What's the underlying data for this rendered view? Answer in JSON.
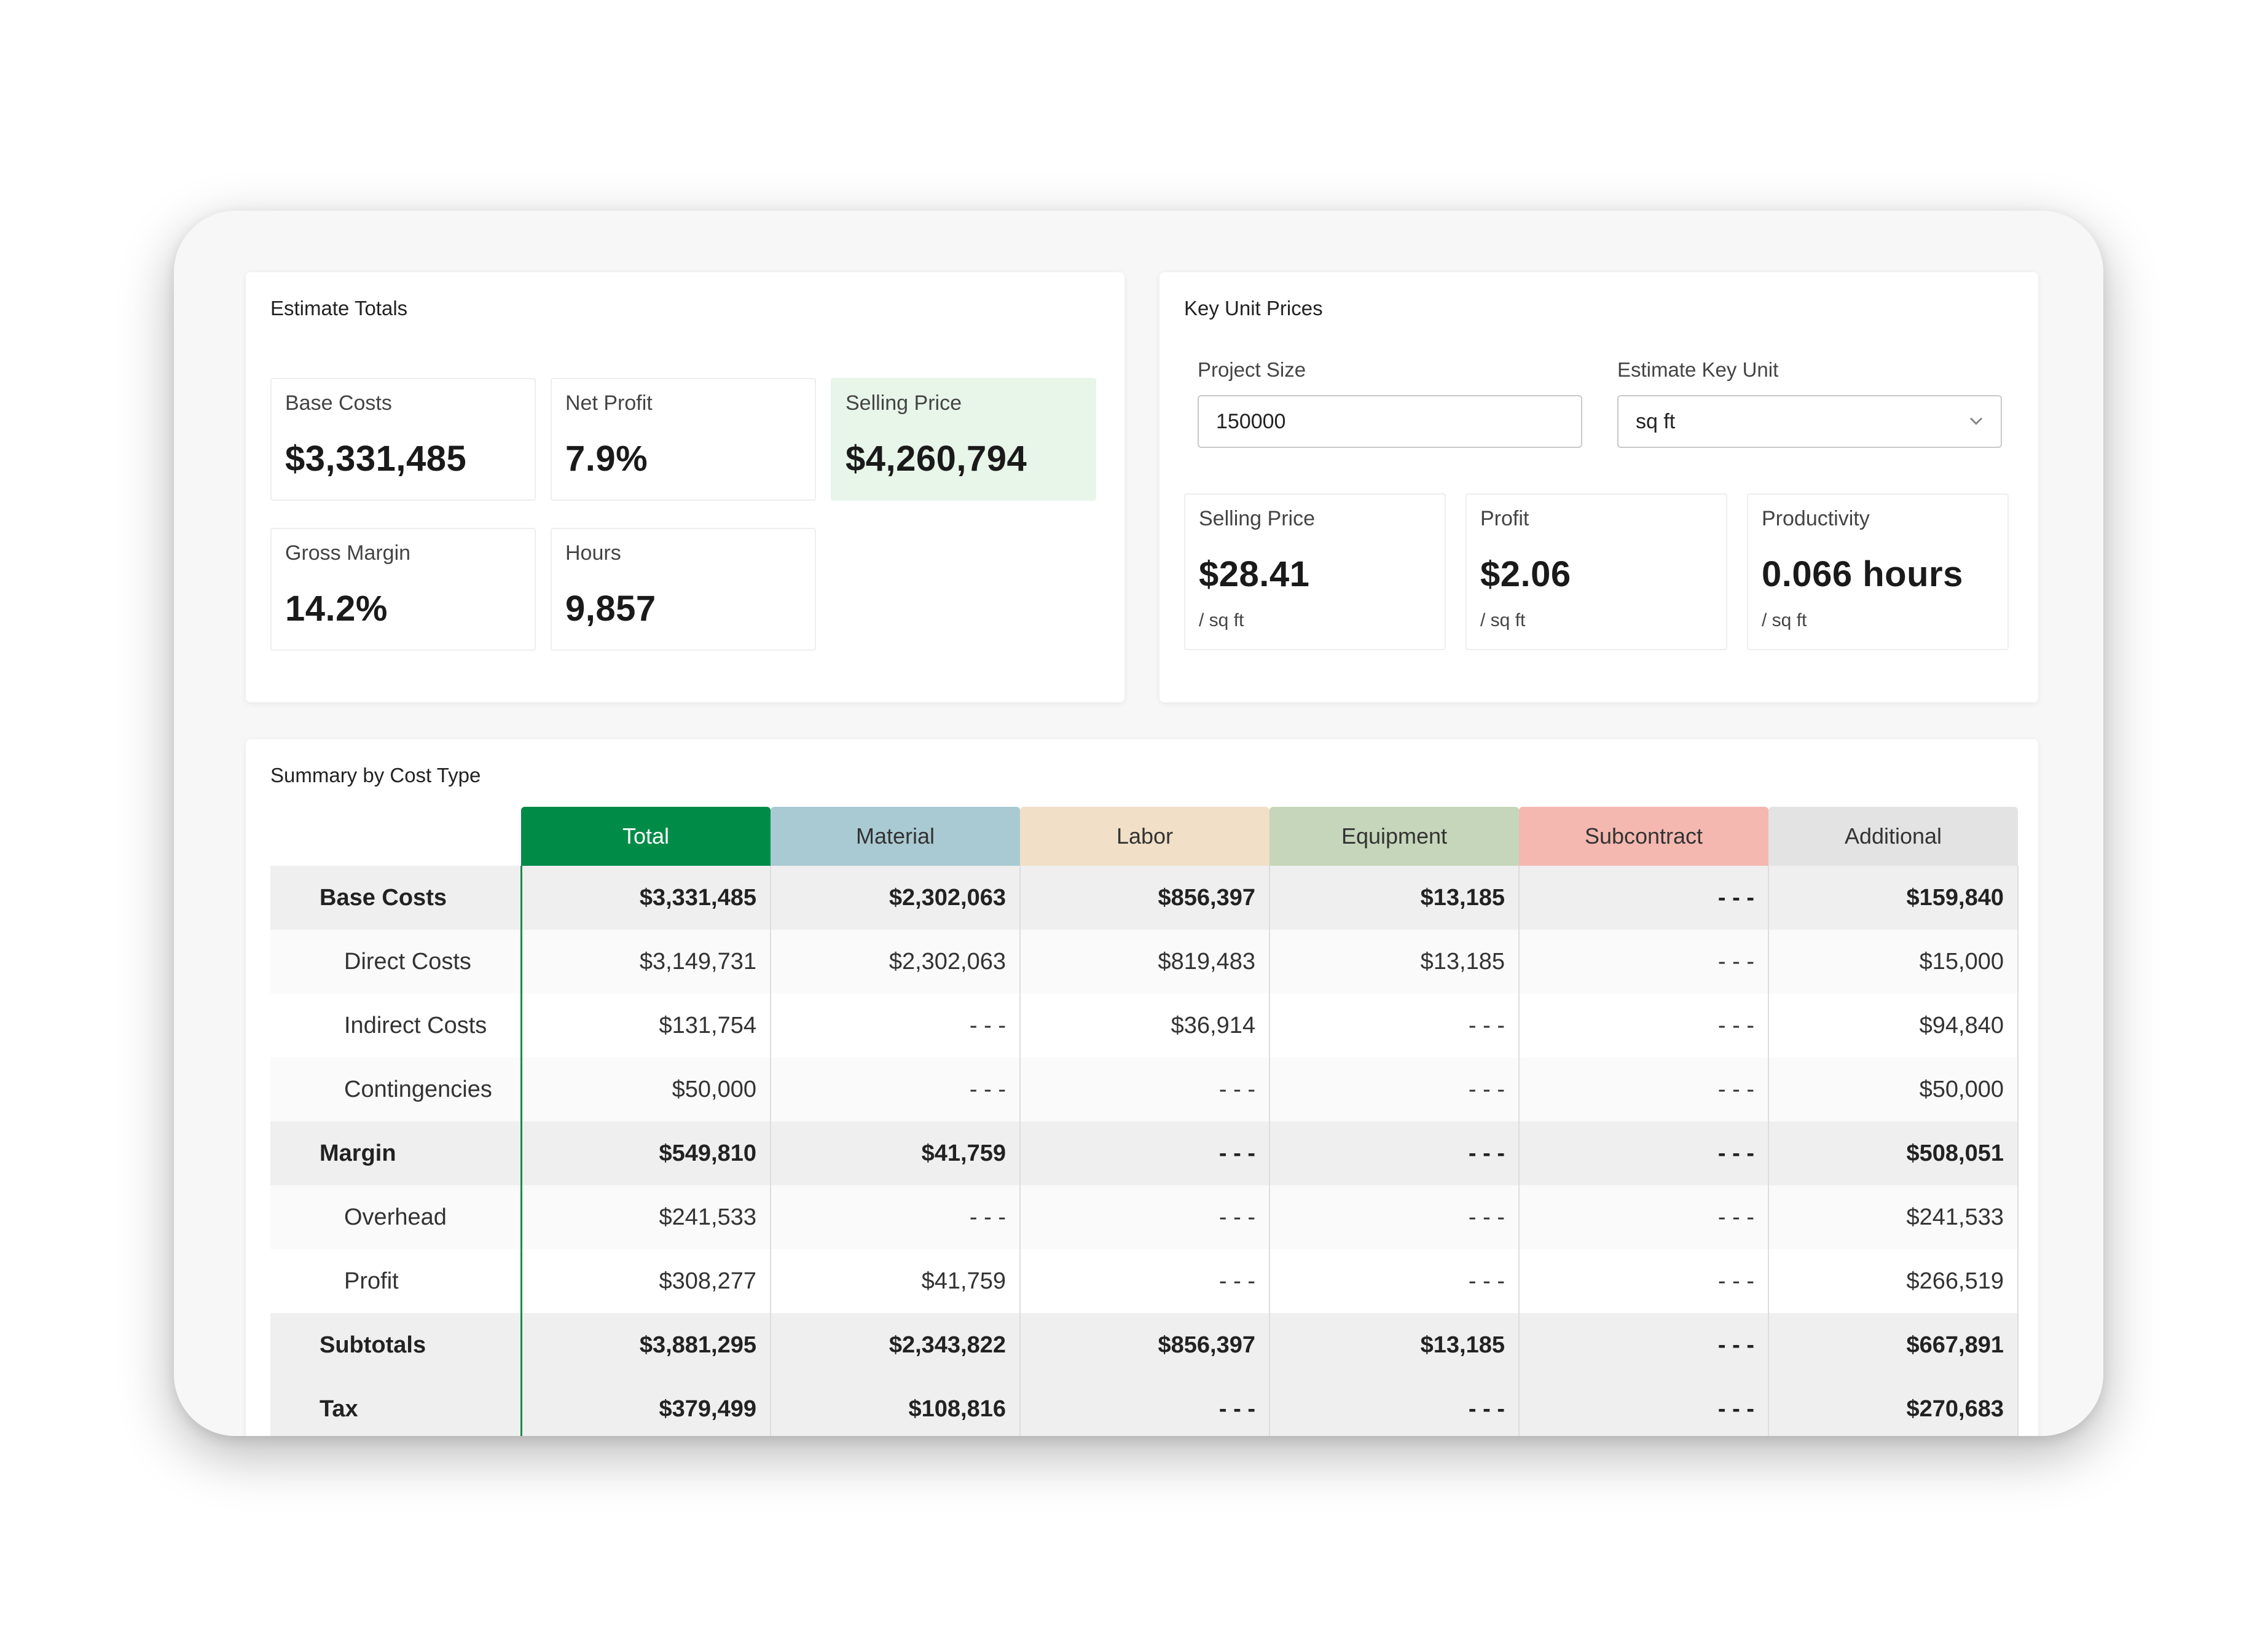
{
  "estimate_totals": {
    "title": "Estimate Totals",
    "cards": [
      {
        "label": "Base Costs",
        "value": "$3,331,485"
      },
      {
        "label": "Net Profit",
        "value": "7.9%"
      },
      {
        "label": "Selling Price",
        "value": "$4,260,794"
      },
      {
        "label": "Gross Margin",
        "value": "14.2%"
      },
      {
        "label": "Hours",
        "value": "9,857"
      }
    ]
  },
  "key_unit_prices": {
    "title": "Key Unit Prices",
    "project_size_label": "Project Size",
    "project_size_value": "150000",
    "key_unit_label": "Estimate Key Unit",
    "key_unit_value": "sq ft",
    "cards": [
      {
        "label": "Selling Price",
        "value": "$28.41",
        "unit": "/ sq ft"
      },
      {
        "label": "Profit",
        "value": "$2.06",
        "unit": "/ sq ft"
      },
      {
        "label": "Productivity",
        "value": "0.066 hours",
        "unit": "/ sq ft"
      }
    ]
  },
  "summary": {
    "title": "Summary by Cost Type",
    "columns": [
      {
        "label": "Total",
        "bg": "#008c47",
        "color": "#ffffff"
      },
      {
        "label": "Material",
        "bg": "#a9cad3",
        "color": "#333333"
      },
      {
        "label": "Labor",
        "bg": "#f1dfc7",
        "color": "#333333"
      },
      {
        "label": "Equipment",
        "bg": "#c6d6ba",
        "color": "#333333"
      },
      {
        "label": "Subcontract",
        "bg": "#f4b8b0",
        "color": "#333333"
      },
      {
        "label": "Additional",
        "bg": "#e3e3e3",
        "color": "#333333"
      }
    ],
    "rows": [
      {
        "label": "Base Costs",
        "kind": "group",
        "values": [
          "$3,331,485",
          "$2,302,063",
          "$856,397",
          "$13,185",
          "- - -",
          "$159,840"
        ]
      },
      {
        "label": "Direct Costs",
        "kind": "sub",
        "values": [
          "$3,149,731",
          "$2,302,063",
          "$819,483",
          "$13,185",
          "- - -",
          "$15,000"
        ]
      },
      {
        "label": "Indirect Costs",
        "kind": "sub",
        "values": [
          "$131,754",
          "- - -",
          "$36,914",
          "- - -",
          "- - -",
          "$94,840"
        ]
      },
      {
        "label": "Contingencies",
        "kind": "sub",
        "values": [
          "$50,000",
          "- - -",
          "- - -",
          "- - -",
          "- - -",
          "$50,000"
        ]
      },
      {
        "label": "Margin",
        "kind": "group",
        "values": [
          "$549,810",
          "$41,759",
          "- - -",
          "- - -",
          "- - -",
          "$508,051"
        ]
      },
      {
        "label": "Overhead",
        "kind": "sub",
        "values": [
          "$241,533",
          "- - -",
          "- - -",
          "- - -",
          "- - -",
          "$241,533"
        ]
      },
      {
        "label": "Profit",
        "kind": "sub",
        "values": [
          "$308,277",
          "$41,759",
          "- - -",
          "- - -",
          "- - -",
          "$266,519"
        ]
      },
      {
        "label": "Subtotals",
        "kind": "group",
        "values": [
          "$3,881,295",
          "$2,343,822",
          "$856,397",
          "$13,185",
          "- - -",
          "$667,891"
        ]
      },
      {
        "label": "Tax",
        "kind": "group",
        "values": [
          "$379,499",
          "$108,816",
          "- - -",
          "- - -",
          "- - -",
          "$270,683"
        ]
      }
    ]
  }
}
